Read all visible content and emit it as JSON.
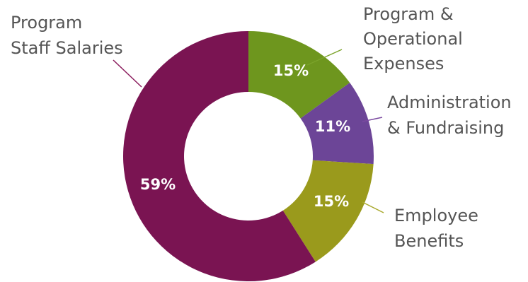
{
  "chart_data": {
    "type": "pie",
    "variant": "donut",
    "slices": [
      {
        "label_lines": [
          "Program &",
          "Operational",
          "Expenses"
        ],
        "value": 15,
        "value_label": "15%",
        "color": "#6e961e"
      },
      {
        "label_lines": [
          "Administration",
          "& Fundraising"
        ],
        "value": 11,
        "value_label": "11%",
        "color": "#6c4597"
      },
      {
        "label_lines": [
          "Employee",
          "Benefits"
        ],
        "value": 15,
        "value_label": "15%",
        "color": "#9a9a1c"
      },
      {
        "label_lines": [
          "Program",
          "Staff Salaries"
        ],
        "value": 59,
        "value_label": "59%",
        "color": "#7a1452"
      }
    ],
    "start": "12 o'clock",
    "direction": "clockwise",
    "legend": "none",
    "leader_line_colors": [
      "#7ba32a",
      "#7b4aa0",
      "#a8a82b",
      "#8a1b5c"
    ]
  }
}
